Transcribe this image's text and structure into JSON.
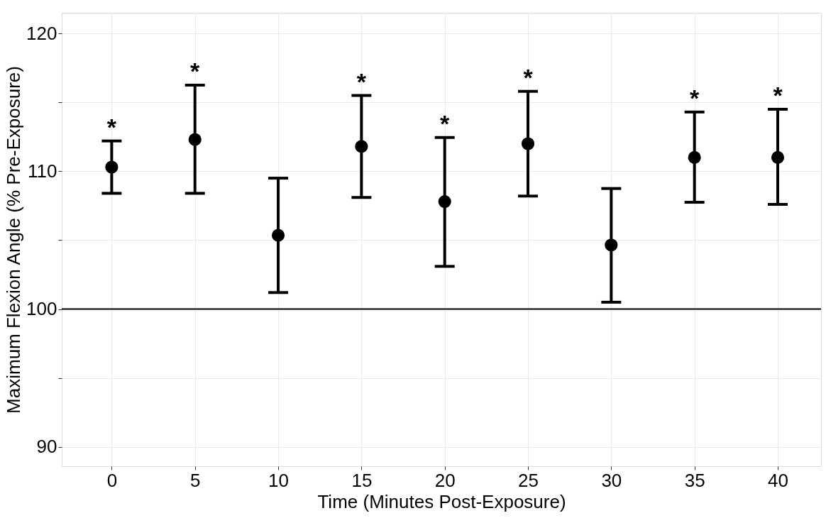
{
  "chart_data": {
    "type": "scatter",
    "xlabel": "Time (Minutes Post-Exposure)",
    "ylabel": "Maximum Flexion Angle (% Pre-Exposure)",
    "x": [
      0,
      5,
      10,
      15,
      20,
      25,
      30,
      35,
      40
    ],
    "values": [
      110.3,
      112.3,
      105.35,
      111.8,
      107.8,
      112.0,
      104.65,
      111.0,
      111.0
    ],
    "errors": [
      [
        108.4,
        112.2
      ],
      [
        108.4,
        116.25
      ],
      [
        101.2,
        109.5
      ],
      [
        108.1,
        115.5
      ],
      [
        103.1,
        112.45
      ],
      [
        108.2,
        115.8
      ],
      [
        100.5,
        108.75
      ],
      [
        107.75,
        114.3
      ],
      [
        107.6,
        114.5
      ]
    ],
    "color": "#000000",
    "marker": "circle",
    "xlim": [
      -3,
      42.6
    ],
    "xticks": [
      0,
      5,
      10,
      15,
      20,
      25,
      30,
      35,
      40
    ],
    "ylim": [
      88.6,
      121.5
    ],
    "yticks": [
      90,
      {
        "value": 95,
        "label": null
      },
      100,
      {
        "value": 105,
        "label": null
      },
      110,
      {
        "value": 115,
        "label": null
      },
      120
    ],
    "grid": true,
    "ref_lines": [
      {
        "axis": "y",
        "value": 100,
        "color": "#000000"
      }
    ],
    "value_labels": [
      "*",
      "*",
      null,
      "*",
      "*",
      "*",
      null,
      "*",
      "*"
    ]
  }
}
